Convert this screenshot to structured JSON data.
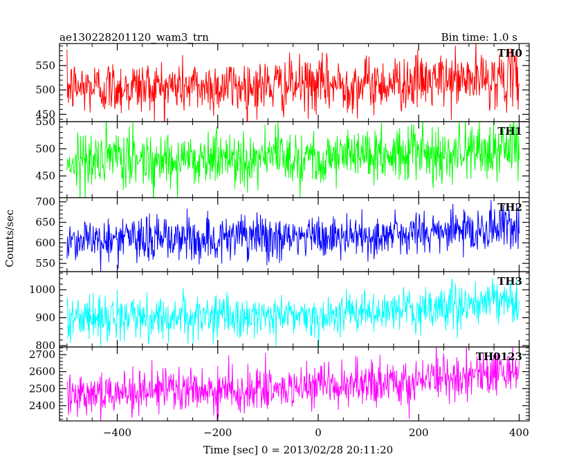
{
  "header": {
    "title": "ae130228201120_wam3_trn",
    "bin_time": "Bin time: 1.0 s"
  },
  "chart_data": {
    "type": "line",
    "title": "ae130228201120_wam3_trn",
    "subtitle": "Bin time: 1.0 s",
    "xlabel": "Time [sec] 0 = 2013/02/28 20:11:20",
    "ylabel": "Counts/sec",
    "xlim": [
      -515,
      420
    ],
    "x_ticks": [
      -400,
      -200,
      0,
      200,
      400
    ],
    "x_tick_labels": [
      "−400",
      "−200",
      "0",
      "200",
      "400"
    ],
    "x_range": [
      -500,
      400
    ],
    "bin_time": 1.0,
    "panels": [
      {
        "name": "TH0",
        "color": "#ff0000",
        "ylim": [
          435,
          595
        ],
        "yticks": [
          450,
          500,
          550
        ],
        "trend": [
          [
            -500,
            505
          ],
          [
            -100,
            508
          ],
          [
            100,
            512
          ],
          [
            400,
            525
          ]
        ],
        "noise": 28
      },
      {
        "name": "TH1",
        "color": "#00ff00",
        "ylim": [
          410,
          550
        ],
        "yticks": [
          450,
          500,
          550
        ],
        "trend": [
          [
            -500,
            478
          ],
          [
            -100,
            485
          ],
          [
            100,
            488
          ],
          [
            400,
            500
          ]
        ],
        "noise": 26
      },
      {
        "name": "TH2",
        "color": "#0000ff",
        "ylim": [
          530,
          710
        ],
        "yticks": [
          550,
          600,
          650,
          700
        ],
        "trend": [
          [
            -500,
            608
          ],
          [
            -100,
            612
          ],
          [
            100,
            615
          ],
          [
            400,
            640
          ]
        ],
        "noise": 28
      },
      {
        "name": "TH3",
        "color": "#00ffff",
        "ylim": [
          795,
          1065
        ],
        "yticks": [
          800,
          900,
          1000
        ],
        "trend": [
          [
            -500,
            900
          ],
          [
            -100,
            905
          ],
          [
            100,
            915
          ],
          [
            400,
            960
          ]
        ],
        "noise": 38
      },
      {
        "name": "TH0123",
        "color": "#ff00ff",
        "ylim": [
          2310,
          2745
        ],
        "yticks": [
          2400,
          2500,
          2600,
          2700
        ],
        "trend": [
          [
            -500,
            2480
          ],
          [
            -100,
            2490
          ],
          [
            100,
            2520
          ],
          [
            400,
            2610
          ]
        ],
        "noise": 65
      }
    ]
  }
}
